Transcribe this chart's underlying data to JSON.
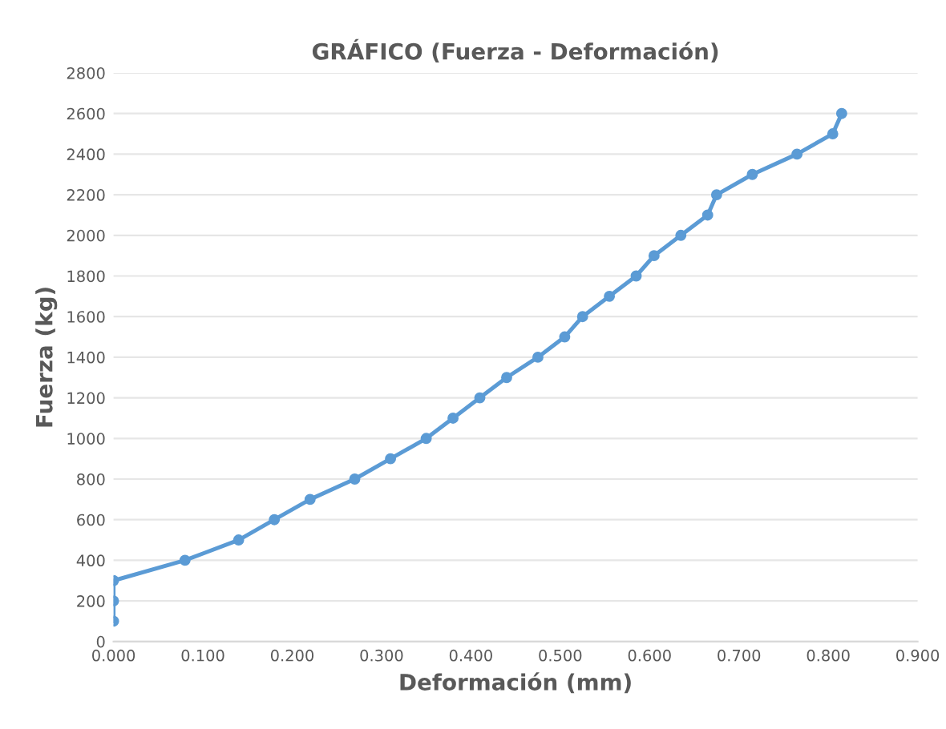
{
  "chart_data": {
    "type": "line",
    "title": "GRÁFICO (Fuerza - Deformación)",
    "xlabel": "Deformación (mm)",
    "ylabel": "Fuerza (kg)",
    "x": [
      0,
      0,
      0,
      0.08,
      0.14,
      0.18,
      0.22,
      0.27,
      0.31,
      0.35,
      0.38,
      0.41,
      0.44,
      0.475,
      0.505,
      0.525,
      0.555,
      0.585,
      0.605,
      0.635,
      0.665,
      0.675,
      0.715,
      0.765,
      0.805,
      0.815
    ],
    "series": [
      {
        "color": "#5b9bd5",
        "values": [
          100,
          200,
          300,
          400,
          500,
          600,
          700,
          800,
          900,
          1000,
          1100,
          1200,
          1300,
          1400,
          1500,
          1600,
          1700,
          1800,
          1900,
          2000,
          2100,
          2200,
          2300,
          2400,
          2500,
          2600
        ]
      }
    ],
    "xlim": [
      0,
      0.9
    ],
    "xticks": [
      {
        "value": 0,
        "label": "0.000"
      },
      {
        "value": 0.1,
        "label": "0.100"
      },
      {
        "value": 0.2,
        "label": "0.200"
      },
      {
        "value": 0.3,
        "label": "0.300"
      },
      {
        "value": 0.4,
        "label": "0.400"
      },
      {
        "value": 0.5,
        "label": "0.500"
      },
      {
        "value": 0.6,
        "label": "0.600"
      },
      {
        "value": 0.7,
        "label": "0.700"
      },
      {
        "value": 0.8,
        "label": "0.800"
      },
      {
        "value": 0.9,
        "label": "0.900"
      }
    ],
    "ylim": [
      0,
      2800
    ],
    "yticks": [
      0,
      200,
      400,
      600,
      800,
      1000,
      1200,
      1400,
      1600,
      1800,
      2000,
      2200,
      2400,
      2600,
      2800
    ],
    "grid": "y",
    "marker": "circle",
    "line_style": "solid",
    "legend": false
  }
}
